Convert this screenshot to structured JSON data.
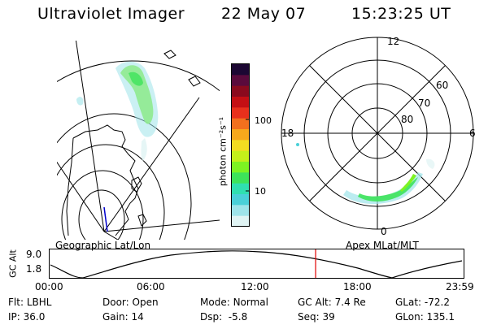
{
  "header": {
    "title": "Ultraviolet Imager",
    "date": "22 May 07",
    "time": "15:23:25 UT"
  },
  "geo_panel": {
    "label": "Geographic Lat/Lon"
  },
  "apex_panel": {
    "label": "Apex MLat/MLT",
    "lat_labels": [
      "60",
      "70",
      "80"
    ],
    "mlt_labels": {
      "top": "12",
      "right": "6",
      "bottom": "0",
      "left": "18"
    }
  },
  "colorbar": {
    "unit_label": "photon cm⁻²s⁻¹",
    "tick_100": "100",
    "tick_10": "10",
    "colors": [
      "#1c0733",
      "#5a0a3c",
      "#8a0a1e",
      "#c40f14",
      "#e8301c",
      "#f2701e",
      "#f7a81c",
      "#f3dc21",
      "#c4ef1a",
      "#7df322",
      "#3de35a",
      "#30dfb0",
      "#4ad0d8",
      "#9ee4ea",
      "#e0f4f4"
    ]
  },
  "altitude_plot": {
    "ylabel": "GC Alt",
    "ymax": "9.0",
    "ymin": "1.8",
    "x_ticks": [
      "00:00",
      "06:00",
      "12:00",
      "18:00",
      "23:59"
    ],
    "current_time_hours": 15.39,
    "marker_color": "#e00000"
  },
  "info": {
    "filter_label": "Flt:",
    "filter_value": "LBHL",
    "ip_label": "IP:",
    "ip_value": "36.0",
    "door_label": "Door:",
    "door_value": "Open",
    "gain_label": "Gain:",
    "gain_value": "14",
    "mode_label": "Mode:",
    "mode_value": "Normal",
    "dsp_label": "Dsp:",
    "dsp_value": "-5.8",
    "gcalt_label": "GC Alt:",
    "gcalt_value": "7.4 Re",
    "seq_label": "Seq:",
    "seq_value": "39",
    "glat_label": "GLat:",
    "glat_value": "-72.2",
    "glon_label": "GLon:",
    "glon_value": "135.1"
  }
}
